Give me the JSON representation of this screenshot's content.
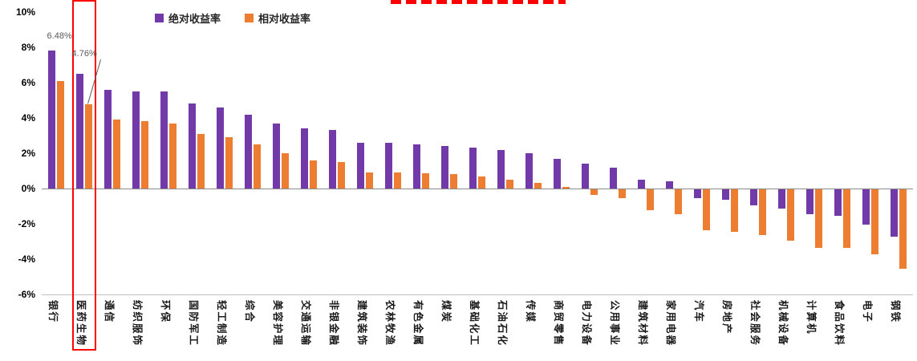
{
  "chart_data": {
    "type": "bar",
    "title": "",
    "title_cropped": true,
    "xlabel": "",
    "ylabel": "",
    "ylim": [
      -6,
      10
    ],
    "grid": false,
    "legend_position": "top",
    "categories": [
      "银行",
      "医药生物",
      "通信",
      "纺织服饰",
      "环保",
      "国防军工",
      "轻工制造",
      "综合",
      "美容护理",
      "交通运输",
      "非银金融",
      "建筑装饰",
      "农林牧渔",
      "有色金属",
      "煤炭",
      "基础化工",
      "石油石化",
      "传媒",
      "商贸零售",
      "电力设备",
      "公用事业",
      "建筑材料",
      "家用电器",
      "汽车",
      "房地产",
      "社会服务",
      "机械设备",
      "计算机",
      "食品饮料",
      "电子",
      "钢铁"
    ],
    "series": [
      {
        "name": "绝对收益率",
        "color": "#713AA8",
        "values": [
          7.8,
          6.48,
          5.6,
          5.5,
          5.5,
          4.8,
          4.6,
          4.2,
          3.7,
          3.4,
          3.3,
          2.6,
          2.6,
          2.5,
          2.4,
          2.3,
          2.2,
          2.0,
          1.7,
          1.4,
          1.2,
          0.5,
          0.4,
          -0.5,
          -0.6,
          -0.9,
          -1.1,
          -1.4,
          -1.5,
          -2.0,
          -2.7
        ]
      },
      {
        "name": "相对收益率",
        "color": "#ED7D31",
        "values": [
          6.1,
          4.76,
          3.9,
          3.8,
          3.7,
          3.1,
          2.9,
          2.5,
          2.0,
          1.6,
          1.5,
          0.9,
          0.9,
          0.85,
          0.8,
          0.7,
          0.5,
          0.3,
          0.1,
          -0.3,
          -0.5,
          -1.2,
          -1.4,
          -2.3,
          -2.4,
          -2.6,
          -2.9,
          -3.3,
          -3.3,
          -3.7,
          -4.5
        ]
      }
    ],
    "yticks": [
      {
        "label": "10%",
        "value": 10
      },
      {
        "label": "8%",
        "value": 8
      },
      {
        "label": "6%",
        "value": 6
      },
      {
        "label": "4%",
        "value": 4
      },
      {
        "label": "2%",
        "value": 2
      },
      {
        "label": "0%",
        "value": 0
      },
      {
        "label": "-2%",
        "value": -2
      },
      {
        "label": "-4%",
        "value": -4
      },
      {
        "label": "-6%",
        "value": -6
      }
    ],
    "annotations": [
      {
        "text": "6.48%",
        "category": "医药生物",
        "series_index": 0
      },
      {
        "text": "4.76%",
        "category": "医药生物",
        "series_index": 1
      }
    ],
    "highlight": {
      "category": "医药生物",
      "color": "#FF0000"
    }
  }
}
